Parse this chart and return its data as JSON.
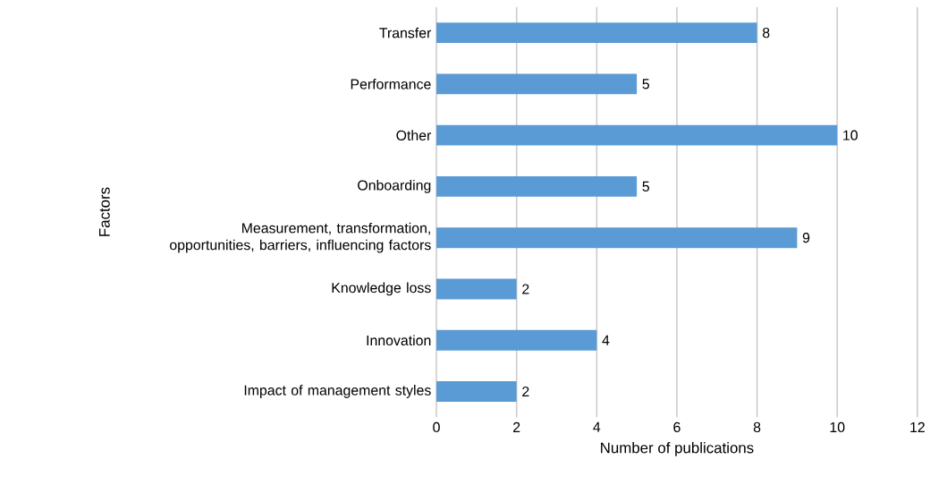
{
  "chart_data": {
    "type": "bar",
    "orientation": "horizontal",
    "categories": [
      "Transfer",
      "Performance",
      "Other",
      "Onboarding",
      "Measurement, transformation, opportunities, barriers, influencing factors",
      "Knowledge loss",
      "Innovation",
      "Impact of management styles"
    ],
    "values": [
      8,
      5,
      10,
      5,
      9,
      2,
      4,
      2
    ],
    "color": "#5b9bd5",
    "xlim": [
      0,
      12
    ],
    "xticks": [
      0,
      2,
      4,
      6,
      8,
      10,
      12
    ],
    "xlabel": "Number of publications",
    "ylabel": "Factors",
    "grid": "x",
    "data_labels": true
  }
}
